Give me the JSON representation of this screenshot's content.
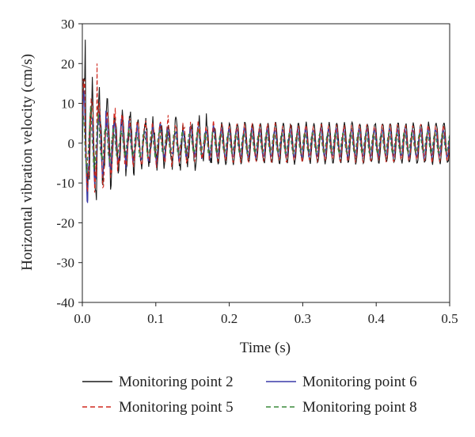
{
  "chart_data": {
    "type": "line",
    "title": "",
    "xlabel": "Time (s)",
    "ylabel": "Horizontal vibration velocity (cm/s)",
    "xlim": [
      0.0,
      0.5
    ],
    "ylim": [
      -40,
      30
    ],
    "xticks": [
      "0.0",
      "0.1",
      "0.2",
      "0.3",
      "0.4",
      "0.5"
    ],
    "xtick_values": [
      0.0,
      0.1,
      0.2,
      0.3,
      0.4,
      0.5
    ],
    "yticks": [
      "-40",
      "-30",
      "-20",
      "-10",
      "0",
      "10",
      "20",
      "30"
    ],
    "ytick_values": [
      -40,
      -30,
      -20,
      -10,
      0,
      10,
      20,
      30
    ],
    "grid": false,
    "legend_position": "bottom",
    "series": [
      {
        "name": "Monitoring point 2",
        "color": "#1a1a1a",
        "dash": "solid",
        "freq_hz": 96,
        "phase": 0.0,
        "steady_amp": 5.0,
        "burst_amp": 14,
        "peak": 26,
        "peak_t": 0.004
      },
      {
        "name": "Monitoring point 6",
        "color": "#3a3aa8",
        "dash": "solid",
        "freq_hz": 96,
        "phase": 0.6,
        "steady_amp": 3.5,
        "burst_amp": 9,
        "peak": -15,
        "peak_t": 0.007
      },
      {
        "name": "Monitoring point 5",
        "color": "#d0281e",
        "dash": "dashed",
        "freq_hz": 96,
        "phase": 0.3,
        "steady_amp": 4.5,
        "burst_amp": 12,
        "peak": 20,
        "peak_t": 0.02
      },
      {
        "name": "Monitoring point 8",
        "color": "#3a8a3a",
        "dash": "dashed",
        "freq_hz": 96,
        "phase": 1.2,
        "steady_amp": 2.5,
        "burst_amp": 6,
        "peak": 8,
        "peak_t": 0.012
      }
    ]
  }
}
